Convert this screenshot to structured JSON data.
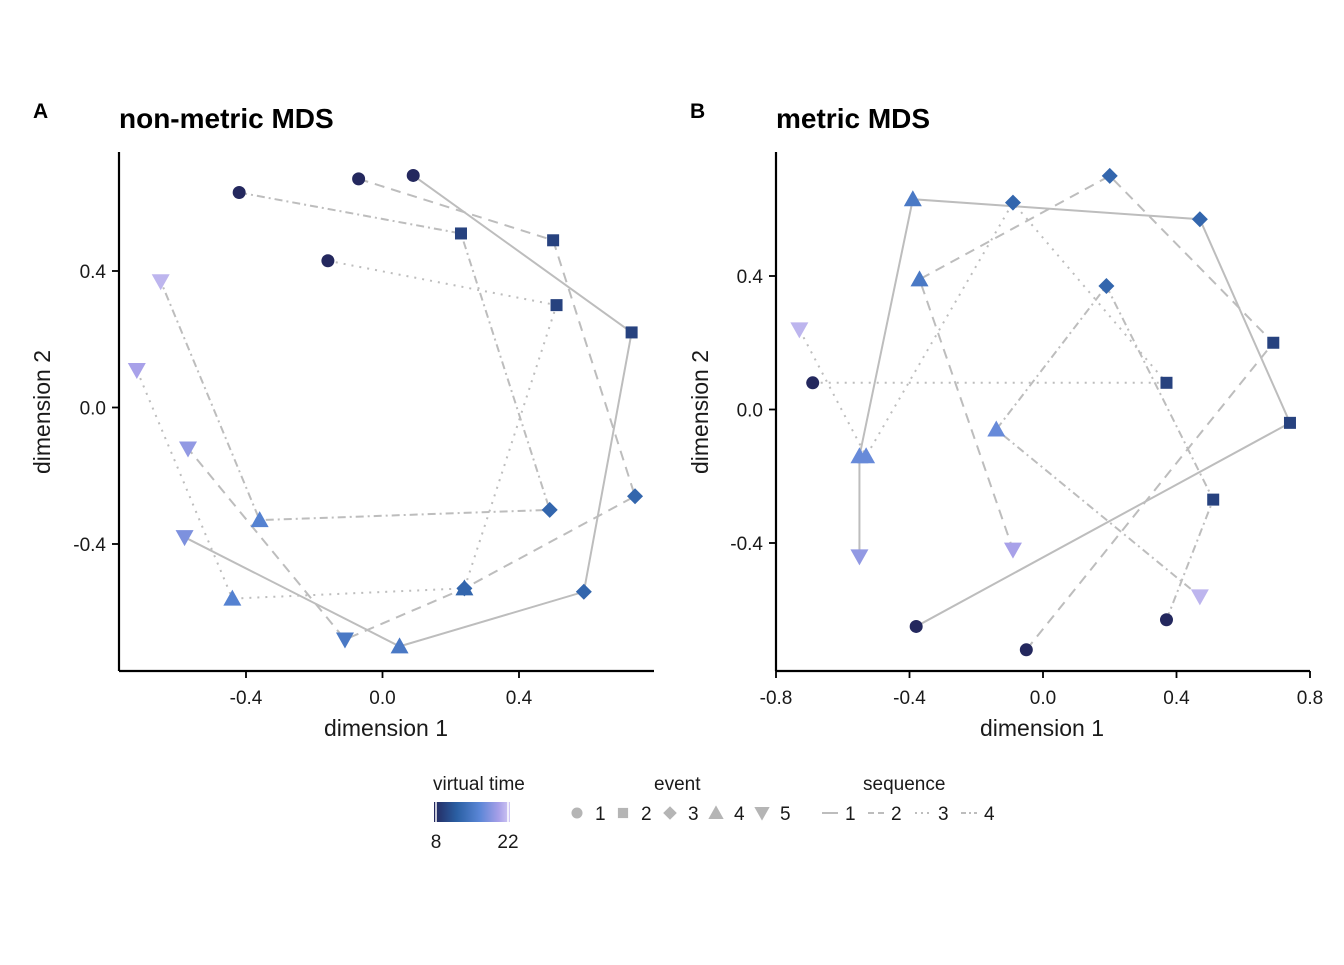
{
  "chart_data": [
    {
      "type": "scatter",
      "panel_label": "A",
      "title": "non-metric MDS",
      "xlabel": "dimension 1",
      "ylabel": "dimension 2",
      "xlim": [
        -0.8,
        0.8
      ],
      "ylim": [
        -0.78,
        0.75
      ],
      "xticks": [
        -0.4,
        0.0,
        0.4
      ],
      "xtick_labels": [
        "-0.4",
        "0.0",
        "0.4"
      ],
      "yticks": [
        -0.4,
        0.0,
        0.4
      ],
      "ytick_labels": [
        "-0.4",
        "0.0",
        "0.4"
      ],
      "grid": false,
      "series": [
        {
          "name": "1",
          "points": [
            {
              "x": 0.09,
              "y": 0.68,
              "event": 1,
              "time": 8
            },
            {
              "x": 0.73,
              "y": 0.22,
              "event": 2,
              "time": 10
            },
            {
              "x": 0.59,
              "y": -0.54,
              "event": 3,
              "time": 13
            },
            {
              "x": 0.05,
              "y": -0.7,
              "event": 4,
              "time": 15
            },
            {
              "x": -0.58,
              "y": -0.38,
              "event": 5,
              "time": 18
            }
          ]
        },
        {
          "name": "2",
          "points": [
            {
              "x": -0.07,
              "y": 0.67,
              "event": 1,
              "time": 8
            },
            {
              "x": 0.5,
              "y": 0.49,
              "event": 2,
              "time": 10
            },
            {
              "x": 0.74,
              "y": -0.26,
              "event": 3,
              "time": 13
            },
            {
              "x": 0.24,
              "y": -0.53,
              "event": 4,
              "time": 13
            },
            {
              "x": -0.11,
              "y": -0.68,
              "event": 5,
              "time": 15
            },
            {
              "x": -0.57,
              "y": -0.12,
              "event": 5,
              "time": 19
            }
          ]
        },
        {
          "name": "3",
          "points": [
            {
              "x": -0.16,
              "y": 0.43,
              "event": 1,
              "time": 8
            },
            {
              "x": 0.51,
              "y": 0.3,
              "event": 2,
              "time": 10
            },
            {
              "x": 0.24,
              "y": -0.53,
              "event": 3,
              "time": 13
            },
            {
              "x": -0.44,
              "y": -0.56,
              "event": 4,
              "time": 16
            },
            {
              "x": -0.72,
              "y": 0.11,
              "event": 5,
              "time": 20
            }
          ]
        },
        {
          "name": "4",
          "points": [
            {
              "x": -0.42,
              "y": 0.63,
              "event": 1,
              "time": 8
            },
            {
              "x": 0.23,
              "y": 0.51,
              "event": 2,
              "time": 10
            },
            {
              "x": 0.49,
              "y": -0.3,
              "event": 3,
              "time": 13
            },
            {
              "x": -0.36,
              "y": -0.33,
              "event": 4,
              "time": 16
            },
            {
              "x": -0.65,
              "y": 0.37,
              "event": 5,
              "time": 21
            }
          ]
        }
      ]
    },
    {
      "type": "scatter",
      "panel_label": "B",
      "title": "metric MDS",
      "xlabel": "dimension 1",
      "ylabel": "dimension 2",
      "xlim": [
        -0.8,
        0.8
      ],
      "ylim": [
        -0.78,
        0.77
      ],
      "xticks": [
        -0.8,
        -0.4,
        0.0,
        0.4,
        0.8
      ],
      "xtick_labels": [
        "-0.8",
        "-0.4",
        "0.0",
        "0.4",
        "0.8"
      ],
      "yticks": [
        -0.4,
        0.0,
        0.4
      ],
      "ytick_labels": [
        "-0.4",
        "0.0",
        "0.4"
      ],
      "grid": false,
      "series": [
        {
          "name": "1",
          "points": [
            {
              "x": -0.38,
              "y": -0.65,
              "event": 1,
              "time": 8
            },
            {
              "x": 0.74,
              "y": -0.04,
              "event": 2,
              "time": 10
            },
            {
              "x": 0.47,
              "y": 0.57,
              "event": 3,
              "time": 13
            },
            {
              "x": -0.39,
              "y": 0.63,
              "event": 4,
              "time": 15
            },
            {
              "x": -0.55,
              "y": -0.14,
              "event": 4,
              "time": 17
            },
            {
              "x": -0.55,
              "y": -0.44,
              "event": 5,
              "time": 19
            }
          ]
        },
        {
          "name": "2",
          "points": [
            {
              "x": -0.05,
              "y": -0.72,
              "event": 1,
              "time": 8
            },
            {
              "x": 0.69,
              "y": 0.2,
              "event": 2,
              "time": 10
            },
            {
              "x": 0.2,
              "y": 0.7,
              "event": 3,
              "time": 13
            },
            {
              "x": -0.37,
              "y": 0.39,
              "event": 4,
              "time": 15
            },
            {
              "x": -0.09,
              "y": -0.42,
              "event": 5,
              "time": 20
            }
          ]
        },
        {
          "name": "3",
          "points": [
            {
              "x": -0.69,
              "y": 0.08,
              "event": 1,
              "time": 8
            },
            {
              "x": 0.37,
              "y": 0.08,
              "event": 2,
              "time": 10
            },
            {
              "x": -0.09,
              "y": 0.62,
              "event": 3,
              "time": 13
            },
            {
              "x": -0.53,
              "y": -0.14,
              "event": 4,
              "time": 17
            },
            {
              "x": -0.73,
              "y": 0.24,
              "event": 5,
              "time": 21
            }
          ]
        },
        {
          "name": "4",
          "points": [
            {
              "x": 0.37,
              "y": -0.63,
              "event": 1,
              "time": 8
            },
            {
              "x": 0.51,
              "y": -0.27,
              "event": 2,
              "time": 10
            },
            {
              "x": 0.19,
              "y": 0.37,
              "event": 3,
              "time": 13
            },
            {
              "x": -0.14,
              "y": -0.06,
              "event": 4,
              "time": 17
            },
            {
              "x": 0.47,
              "y": -0.56,
              "event": 5,
              "time": 21
            }
          ]
        }
      ]
    }
  ],
  "legend": {
    "time_title": "virtual time",
    "time_min_label": "8",
    "time_max_label": "22",
    "time_min": 8,
    "time_max": 22,
    "colors": [
      "#24285e",
      "#2a5fa3",
      "#5a86d6",
      "#a69fe8",
      "#d2c9f4"
    ],
    "event_title": "event",
    "event_items": [
      "1",
      "2",
      "3",
      "4",
      "5"
    ],
    "sequence_title": "sequence",
    "sequence_items": [
      "1",
      "2",
      "3",
      "4"
    ]
  }
}
